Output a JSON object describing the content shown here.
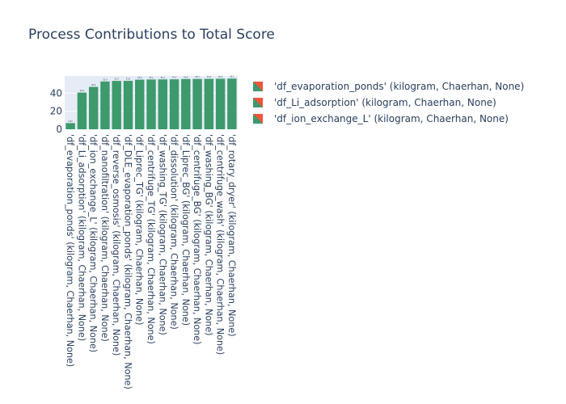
{
  "chart_data": {
    "type": "bar",
    "title": "Process Contributions to Total Score",
    "categories": [
      "'df_evaporation_ponds' (kilogram, Chaerhan, None)",
      "'df_Li_adsorption' (kilogram, Chaerhan, None)",
      "'df_ion_exchange_L' (kilogram, Chaerhan, None)",
      "'df_nanofiltration' (kilogram, Chaerhan, None)",
      "'df_reverse_osmosis' (kilogram, Chaerhan, None)",
      "'df_DLE_evaporation_ponds' (kilogram, Chaerhan, None)",
      "'df_Liprec_TG' (kilogram, Chaerhan, None)",
      "'df_centrifuge_TG' (kilogram, Chaerhan, None)",
      "'df_washing_TG' (kilogram, Chaerhan, None)",
      "'df_dissolution' (kilogram, Chaerhan, None)",
      "'df_Liprec_BG' (kilogram, Chaerhan, None)",
      "'df_centrifuge_BG' (kilogram, Chaerhan, None)",
      "'df_washing_BG' (kilogram, Chaerhan, None)",
      "'df_centrifuge_wash' (kilogram, Chaerhan, None)",
      "'df_rotary_dryer' (kilogram, Chaerhan, None)"
    ],
    "values": [
      6.87,
      40.6,
      46.9,
      52.9,
      53.5,
      53.6,
      54.9,
      55.1,
      55.2,
      55.3,
      55.6,
      55.7,
      55.8,
      55.9,
      56.1
    ],
    "data_labels": [
      "6.87",
      "40.6",
      "46.9",
      "52.9",
      "53.5",
      "53.6",
      "54.9",
      "55.1",
      "55.2",
      "55.3",
      "55.6",
      "55.7",
      "55.8",
      "55.9",
      "56.1"
    ],
    "yticks": [
      0,
      20,
      40
    ],
    "ylim": [
      0,
      59
    ],
    "bar_color": "#3c9a6c",
    "plot_bg": "#e5ecf6",
    "legend": {
      "position": "right",
      "entries": [
        "'df_evaporation_ponds' (kilogram, Chaerhan, None)",
        "'df_Li_adsorption' (kilogram, Chaerhan, None)",
        "'df_ion_exchange_L' (kilogram, Chaerhan, None)"
      ],
      "swatch_colors": [
        "#ef553b",
        "#3c9a6c"
      ]
    }
  }
}
